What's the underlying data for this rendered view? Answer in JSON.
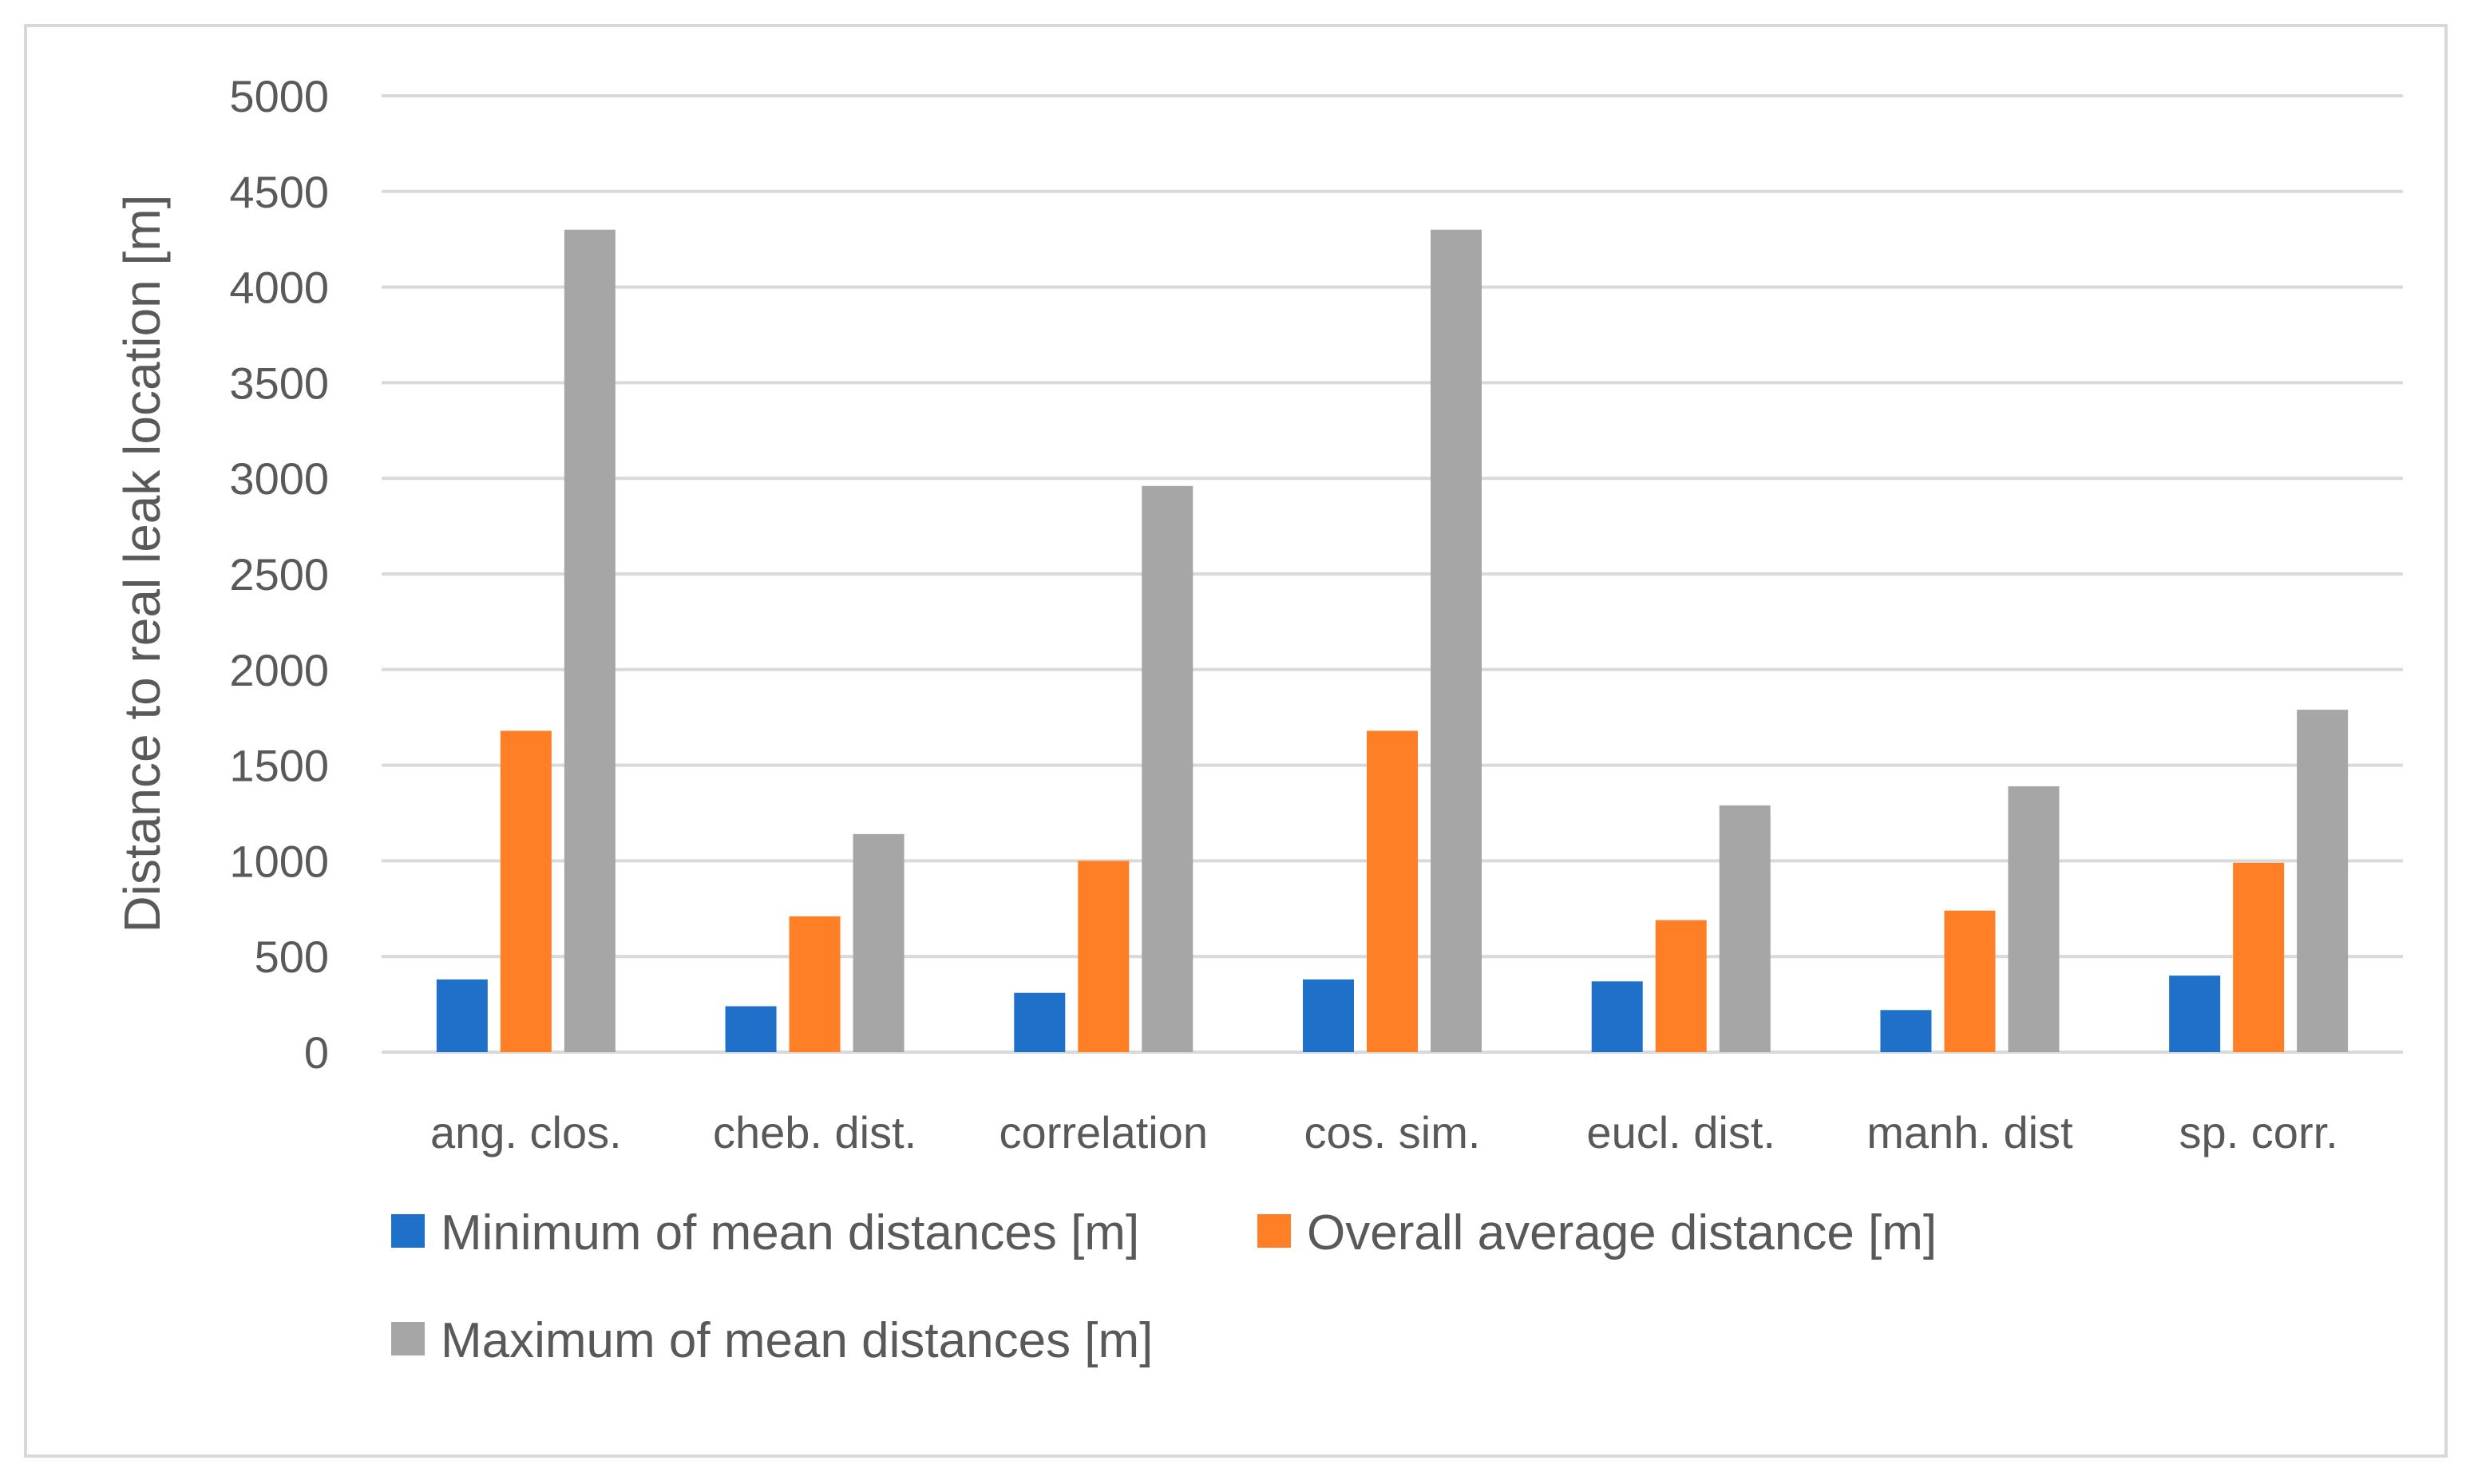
{
  "chart_data": {
    "type": "bar",
    "title": "",
    "xlabel": "",
    "ylabel": "Distance to real leak location [m]",
    "ylim": [
      0,
      5000
    ],
    "yticks": [
      0,
      500,
      1000,
      1500,
      2000,
      2500,
      3000,
      3500,
      4000,
      4500,
      5000
    ],
    "grid": true,
    "legend_position": "bottom",
    "categories": [
      "ang. clos.",
      "cheb. dist.",
      "correlation",
      "cos. sim.",
      "eucl. dist.",
      "manh. dist",
      "sp. corr."
    ],
    "series": [
      {
        "name": "Minimum of mean distances [m]",
        "color": "#1f70c8",
        "values": [
          380,
          240,
          310,
          380,
          370,
          220,
          400
        ]
      },
      {
        "name": "Overall average distance [m]",
        "color": "#ff7f27",
        "values": [
          1680,
          710,
          1000,
          1680,
          690,
          740,
          990
        ]
      },
      {
        "name": "Maximum of mean distances [m]",
        "color": "#a6a6a6",
        "values": [
          4300,
          1140,
          2960,
          4300,
          1290,
          1390,
          1790
        ]
      }
    ]
  }
}
